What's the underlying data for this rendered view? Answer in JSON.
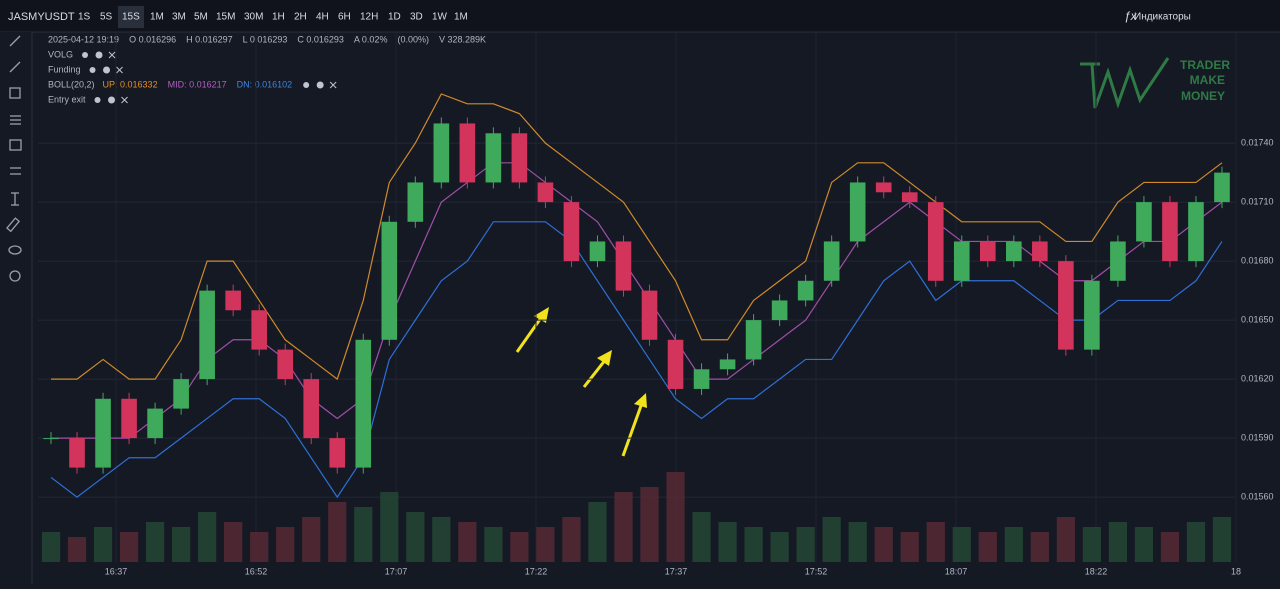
{
  "toolbar": {
    "symbol": "JASMYUSDT",
    "intervals": [
      "1S",
      "5S",
      "15S",
      "1M",
      "3M",
      "5M",
      "15M",
      "30M",
      "1H",
      "2H",
      "4H",
      "6H",
      "12H",
      "1D",
      "3D",
      "1W",
      "1M"
    ],
    "active_interval": 2,
    "indicators_button": "Индикаторы"
  },
  "legend": {
    "ohlc": [
      "2025-04-12 19:19",
      "O 0.016296",
      "H 0.016297",
      "L 0.016293",
      "C 0.016293",
      "A 0.02%",
      "(0.00%)",
      "V 328.289K"
    ],
    "indicators": [
      {
        "name": "VOLG"
      },
      {
        "name": "Funding"
      },
      {
        "name": "BOLL(20,2)",
        "up": "UP: 0.016332",
        "mid": "MID: 0.016217",
        "dn": "DN: 0.016102"
      },
      {
        "name": "Entry exit"
      }
    ]
  },
  "logo": [
    "TRADER",
    "MAKE",
    "MONEY"
  ],
  "chart_data": {
    "type": "candlestick",
    "x_labels": [
      "16:37",
      "16:52",
      "17:07",
      "17:22",
      "17:37",
      "17:52",
      "18:07",
      "18:22",
      "18"
    ],
    "ylim": [
      0.01527,
      0.01796
    ],
    "yticks": [
      {
        "value": 0.0174,
        "label": "0.01740"
      },
      {
        "value": 0.0171,
        "label": "0.01710"
      },
      {
        "value": 0.0168,
        "label": "0.01680"
      },
      {
        "value": 0.0165,
        "label": "0.01650"
      },
      {
        "value": 0.0162,
        "label": "0.01620"
      },
      {
        "value": 0.0159,
        "label": "0.01590"
      },
      {
        "value": 0.0156,
        "label": "0.01560"
      }
    ],
    "up_color": "#3faa5c",
    "down_color": "#d2345c",
    "close": [
      0.0159,
      0.01575,
      0.0161,
      0.0159,
      0.01605,
      0.0162,
      0.01665,
      0.01655,
      0.01635,
      0.0162,
      0.0159,
      0.01575,
      0.0164,
      0.017,
      0.0172,
      0.0175,
      0.0172,
      0.01745,
      0.0172,
      0.0171,
      0.0168,
      0.0169,
      0.01665,
      0.0164,
      0.01615,
      0.01625,
      0.0163,
      0.0165,
      0.0166,
      0.0167,
      0.0169,
      0.0172,
      0.01715,
      0.0171,
      0.0167,
      0.0169,
      0.0168,
      0.0169,
      0.0168,
      0.01635,
      0.0167,
      0.0169,
      0.0171,
      0.0168,
      0.0171,
      0.01725
    ],
    "series": [
      {
        "name": "UP",
        "color": "#d08a2a",
        "values": [
          0.0162,
          0.0162,
          0.0163,
          0.0162,
          0.0162,
          0.0164,
          0.0168,
          0.0168,
          0.0166,
          0.0164,
          0.0163,
          0.0162,
          0.0166,
          0.0172,
          0.0174,
          0.01765,
          0.0176,
          0.0176,
          0.01755,
          0.0174,
          0.0173,
          0.0172,
          0.0171,
          0.0169,
          0.0167,
          0.0164,
          0.0164,
          0.0166,
          0.0167,
          0.0168,
          0.0172,
          0.0173,
          0.0173,
          0.0172,
          0.0171,
          0.017,
          0.017,
          0.017,
          0.017,
          0.0169,
          0.0169,
          0.0171,
          0.0172,
          0.0172,
          0.0172,
          0.0173
        ]
      },
      {
        "name": "MID",
        "color": "#a04fa8",
        "values": [
          0.0159,
          0.0159,
          0.0159,
          0.0159,
          0.016,
          0.0161,
          0.0163,
          0.0164,
          0.0164,
          0.0163,
          0.0161,
          0.016,
          0.0161,
          0.0165,
          0.0168,
          0.0171,
          0.0172,
          0.0173,
          0.0173,
          0.0172,
          0.0171,
          0.017,
          0.0168,
          0.0166,
          0.0164,
          0.0162,
          0.0162,
          0.0163,
          0.0164,
          0.0165,
          0.0167,
          0.0169,
          0.017,
          0.0171,
          0.017,
          0.0169,
          0.0169,
          0.0169,
          0.0168,
          0.0167,
          0.0167,
          0.0168,
          0.0169,
          0.0169,
          0.017,
          0.0171
        ]
      },
      {
        "name": "DN",
        "color": "#2f6fd6",
        "values": [
          0.0157,
          0.0156,
          0.0157,
          0.0158,
          0.0158,
          0.0159,
          0.016,
          0.0161,
          0.0161,
          0.016,
          0.0158,
          0.0156,
          0.0158,
          0.0163,
          0.0165,
          0.0167,
          0.0168,
          0.017,
          0.017,
          0.017,
          0.0169,
          0.0167,
          0.0165,
          0.0163,
          0.0161,
          0.016,
          0.0161,
          0.0161,
          0.0162,
          0.0163,
          0.0163,
          0.0165,
          0.0167,
          0.0168,
          0.0166,
          0.0167,
          0.0167,
          0.0167,
          0.0166,
          0.0165,
          0.0165,
          0.0166,
          0.0166,
          0.0166,
          0.0167,
          0.0169
        ]
      }
    ],
    "volume": [
      30,
      25,
      35,
      30,
      40,
      35,
      50,
      40,
      30,
      35,
      45,
      60,
      55,
      70,
      50,
      45,
      40,
      35,
      30,
      35,
      45,
      60,
      70,
      75,
      90,
      50,
      40,
      35,
      30,
      35,
      45,
      40,
      35,
      30,
      40,
      35,
      30,
      35,
      30,
      45,
      35,
      40,
      35,
      30,
      40,
      45
    ]
  }
}
